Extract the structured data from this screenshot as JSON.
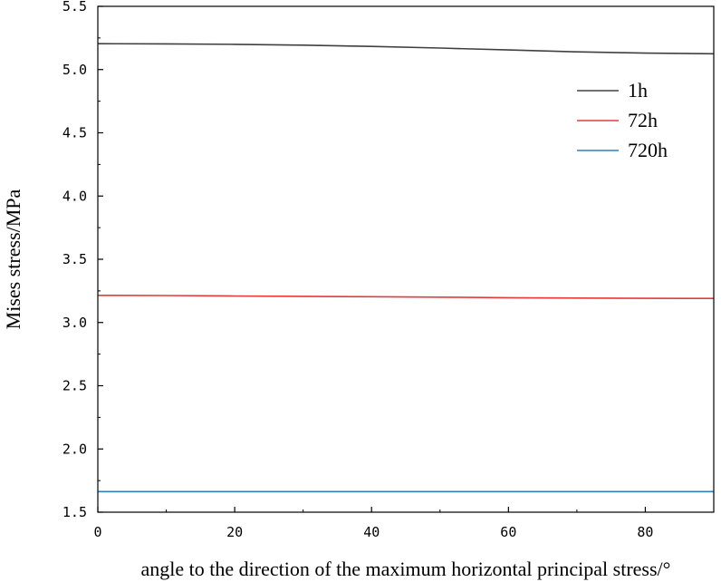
{
  "chart_data": {
    "type": "line",
    "title": "",
    "xlabel": "angle to the direction of the maximum horizontal principal stress/°",
    "ylabel": "Mises stress/MPa",
    "xlim": [
      0,
      90
    ],
    "ylim": [
      1.5,
      5.5
    ],
    "xticks": [
      "0",
      "20",
      "40",
      "60",
      "80"
    ],
    "yticks": [
      "1.5",
      "2.0",
      "2.5",
      "3.0",
      "3.5",
      "4.0",
      "4.5",
      "5.0",
      "5.5"
    ],
    "grid": false,
    "legend_position": "top-right",
    "x": [
      0,
      10,
      20,
      30,
      40,
      50,
      60,
      70,
      80,
      90
    ],
    "series": [
      {
        "name": "1h",
        "color": "#404040",
        "values": [
          5.205,
          5.203,
          5.2,
          5.193,
          5.183,
          5.17,
          5.155,
          5.14,
          5.13,
          5.125
        ]
      },
      {
        "name": "72h",
        "color": "#e8383a",
        "values": [
          3.215,
          3.213,
          3.21,
          3.207,
          3.204,
          3.2,
          3.196,
          3.193,
          3.191,
          3.19
        ]
      },
      {
        "name": "720h",
        "color": "#2f7fc1",
        "values": [
          1.663,
          1.663,
          1.663,
          1.663,
          1.663,
          1.663,
          1.663,
          1.663,
          1.663,
          1.663
        ]
      }
    ]
  }
}
